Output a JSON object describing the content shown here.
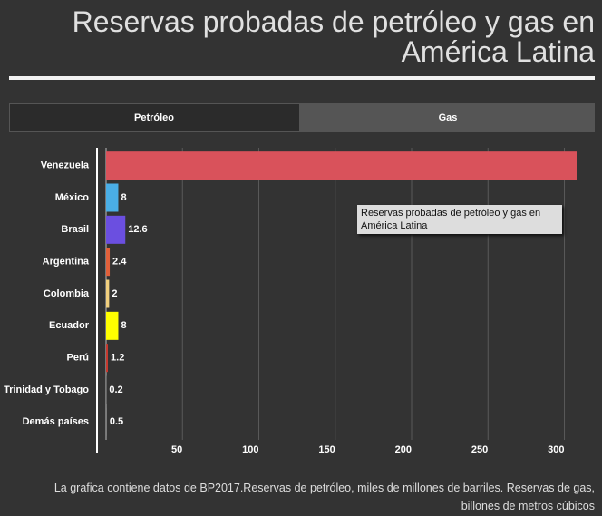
{
  "tabs": [
    "Petróleo",
    "Gas"
  ],
  "chart_data": {
    "type": "hbar",
    "title": "Reservas probadas de petróleo y gas en América Latina",
    "categories": [
      "Venezuela",
      "México",
      "Brasil",
      "Argentina",
      "Colombia",
      "Ecuador",
      "Perú",
      "Trinidad y Tobago",
      "Demás países"
    ],
    "values": [
      308,
      8,
      12.6,
      2.4,
      2,
      8,
      1.2,
      0.2,
      0.5
    ],
    "colors": [
      "#d9525b",
      "#4aaee6",
      "#6b4fe0",
      "#e2603a",
      "#f2d07e",
      "#ffff00",
      "#c8392f",
      "#8a8a8a",
      "#8a8a8a"
    ],
    "xlim": [
      0,
      308
    ],
    "xticks": [
      50,
      100,
      150,
      200,
      250,
      300
    ],
    "grid": true,
    "tooltip": "Reservas probadas de petróleo y gas en América Latina",
    "note": "La grafica contiene datos de BP2017.Reservas de petróleo, miles de millones de barriles. Reservas de gas, billones de metros cúbicos"
  }
}
